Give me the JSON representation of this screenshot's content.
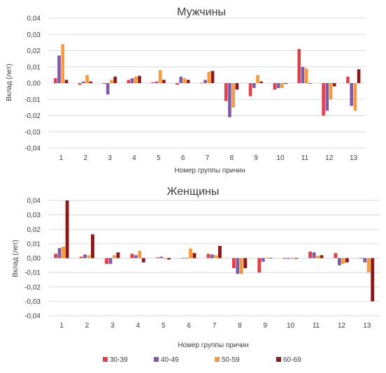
{
  "series_colors": [
    "#e0414a",
    "#7f5ba8",
    "#f79a3d",
    "#8b1a1a"
  ],
  "legend": [
    "30-39",
    "40-49",
    "50-59",
    "60-69"
  ],
  "chart_data": [
    {
      "type": "bar",
      "title": "Мужчины",
      "xlabel": "Номер группы причин",
      "ylabel": "Вклад (лет)",
      "ylim": [
        -0.04,
        0.04
      ],
      "yticks": [
        "-0,04",
        "-0,03",
        "-0,02",
        "-0,01",
        "0,00",
        "0,01",
        "0,02",
        "0,03",
        "0,04"
      ],
      "grid": true,
      "categories": [
        "1",
        "2",
        "3",
        "4",
        "5",
        "6",
        "7",
        "8",
        "9",
        "10",
        "11",
        "12",
        "13"
      ],
      "series": [
        {
          "name": "30-39",
          "values": [
            0.003,
            -0.001,
            -0.0005,
            0.002,
            0.0005,
            -0.001,
            0.0002,
            -0.011,
            -0.008,
            -0.004,
            0.021,
            -0.02,
            0.004
          ]
        },
        {
          "name": "40-49",
          "values": [
            0.017,
            0.001,
            -0.007,
            0.003,
            0.001,
            0.004,
            0.002,
            -0.021,
            -0.003,
            -0.003,
            0.01,
            -0.017,
            -0.014
          ]
        },
        {
          "name": "50-59",
          "values": [
            0.024,
            0.005,
            0.002,
            0.004,
            0.008,
            0.003,
            0.007,
            -0.015,
            0.005,
            -0.003,
            0.009,
            -0.01,
            -0.017
          ]
        },
        {
          "name": "60-69",
          "values": [
            0.002,
            0.001,
            0.004,
            0.0045,
            0.002,
            0.002,
            0.0075,
            -0.004,
            0.001,
            -0.0005,
            0.0,
            -0.002,
            0.0085
          ]
        }
      ]
    },
    {
      "type": "bar",
      "title": "Женщины",
      "xlabel": "Номер группы причин",
      "ylabel": "Вклад (лет)",
      "ylim": [
        -0.04,
        0.04
      ],
      "yticks": [
        "-0,04",
        "-0,03",
        "-0,02",
        "-0,01",
        "0,00",
        "0,01",
        "0,02",
        "0,03",
        "0,04"
      ],
      "grid": true,
      "categories": [
        "1",
        "2",
        "3",
        "4",
        "5",
        "6",
        "7",
        "8",
        "9",
        "10",
        "11",
        "12",
        "13"
      ],
      "series": [
        {
          "name": "30-39",
          "values": [
            0.003,
            0.001,
            -0.004,
            0.003,
            0.0005,
            0.0002,
            0.003,
            -0.007,
            -0.01,
            -0.0005,
            0.0045,
            0.0035,
            0.0002
          ]
        },
        {
          "name": "40-49",
          "values": [
            0.007,
            0.0025,
            -0.004,
            0.002,
            0.001,
            0.0002,
            0.0025,
            -0.011,
            -0.0025,
            -0.0005,
            0.004,
            -0.005,
            -0.003
          ]
        },
        {
          "name": "50-59",
          "values": [
            0.008,
            0.002,
            0.002,
            0.005,
            -0.0005,
            0.0065,
            0.002,
            -0.011,
            0.0005,
            -0.0005,
            0.0015,
            -0.004,
            -0.01
          ]
        },
        {
          "name": "60-69",
          "values": [
            0.04,
            0.0165,
            0.004,
            -0.003,
            -0.001,
            0.0035,
            0.0085,
            -0.007,
            0.0002,
            -0.0005,
            0.002,
            -0.003,
            -0.03
          ]
        }
      ]
    }
  ]
}
